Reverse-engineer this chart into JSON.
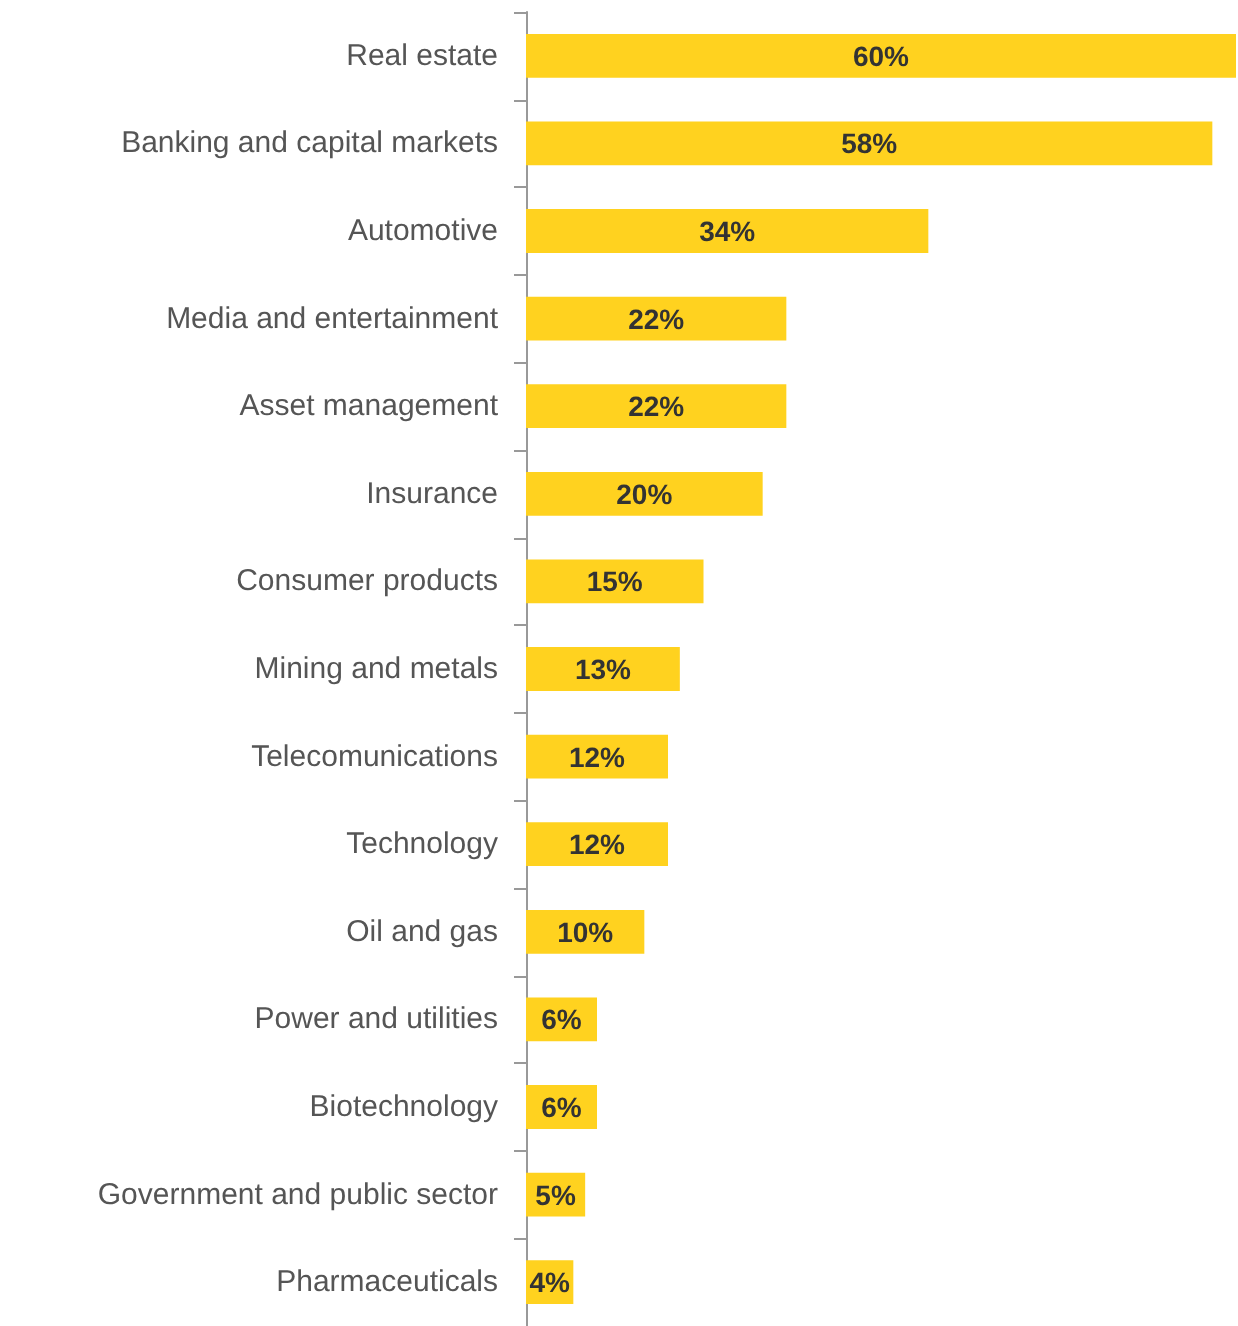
{
  "chart_data": {
    "type": "bar",
    "orientation": "horizontal",
    "categories": [
      "Real estate",
      "Banking and capital markets",
      "Automotive",
      "Media and entertainment",
      "Asset management",
      "Insurance",
      "Consumer products",
      "Mining and metals",
      "Telecomunications",
      "Technology",
      "Oil and gas",
      "Power and utilities",
      "Biotechnology",
      "Government and public sector",
      "Pharmaceuticals"
    ],
    "values": [
      60,
      58,
      34,
      22,
      22,
      20,
      15,
      13,
      12,
      12,
      10,
      6,
      6,
      5,
      4
    ],
    "value_labels": [
      "60%",
      "58%",
      "34%",
      "22%",
      "22%",
      "20%",
      "15%",
      "13%",
      "12%",
      "12%",
      "10%",
      "6%",
      "6%",
      "5%",
      "4%"
    ],
    "color": "#ffd21f"
  }
}
